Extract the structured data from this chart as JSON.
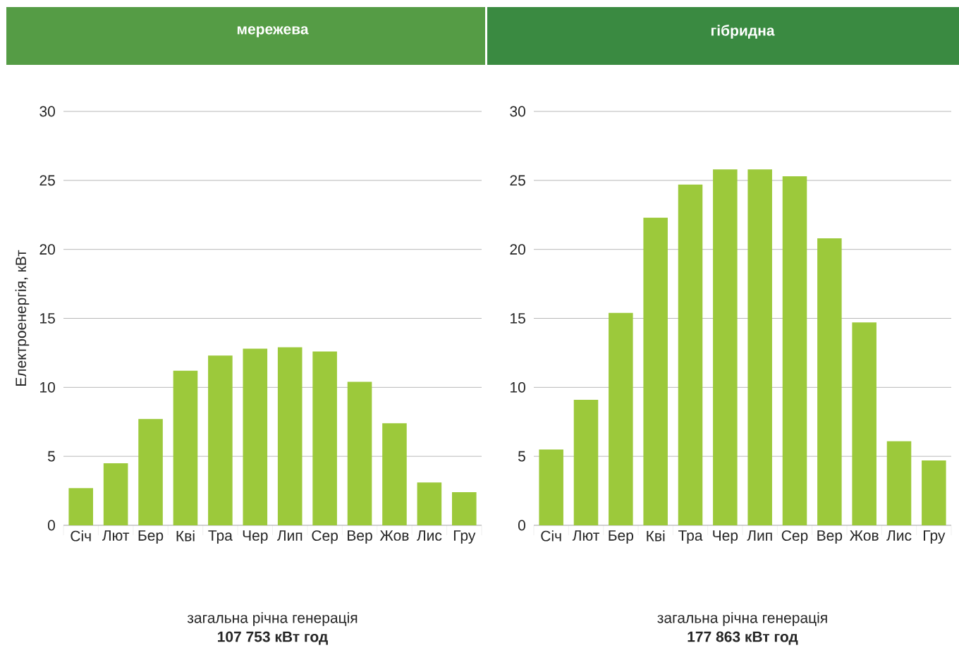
{
  "chart_data": [
    {
      "type": "bar",
      "title": "мережева",
      "ylabel": "Електроенергія, кВт",
      "categories": [
        "Січ",
        "Лют",
        "Бер",
        "Кві",
        "Тра",
        "Чер",
        "Лип",
        "Сер",
        "Вер",
        "Жов",
        "Лис",
        "Гру"
      ],
      "values": [
        2.7,
        4.5,
        7.7,
        11.2,
        12.3,
        12.8,
        12.9,
        12.6,
        10.4,
        7.4,
        3.1,
        2.4
      ],
      "color": "#9cc93b",
      "ylim": [
        0,
        30
      ],
      "yticks": [
        0,
        5,
        10,
        15,
        20,
        25,
        30
      ],
      "grid": "y",
      "annotations": [
        "загальна річна генерація",
        "107 753 кВт год"
      ]
    },
    {
      "type": "bar",
      "title": "гібридна",
      "categories": [
        "Січ",
        "Лют",
        "Бер",
        "Кві",
        "Тра",
        "Чер",
        "Лип",
        "Сер",
        "Вер",
        "Жов",
        "Лис",
        "Гру"
      ],
      "values": [
        5.5,
        9.1,
        15.4,
        22.3,
        24.7,
        25.8,
        25.8,
        25.3,
        20.8,
        14.7,
        6.1,
        4.7
      ],
      "color": "#9cc93b",
      "ylim": [
        0,
        30
      ],
      "yticks": [
        0,
        5,
        10,
        15,
        20,
        25,
        30
      ],
      "grid": "y",
      "annotations": [
        "загальна річна генерація",
        "177 863 кВт год"
      ]
    }
  ]
}
